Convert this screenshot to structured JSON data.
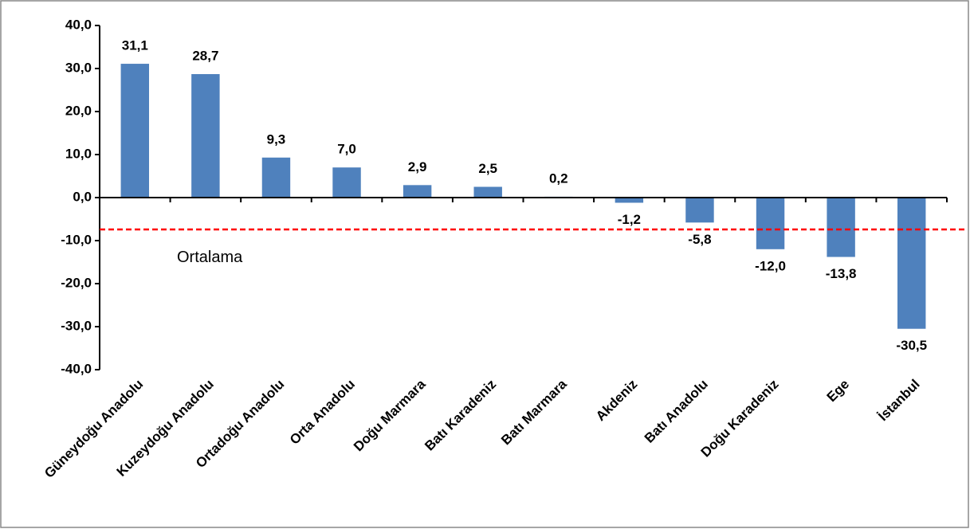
{
  "chart_data": {
    "type": "bar",
    "categories": [
      "Güneydoğu Anadolu",
      "Kuzeydoğu Anadolu",
      "Ortadoğu Anadolu",
      "Orta Anadolu",
      "Doğu Marmara",
      "Batı Karadeniz",
      "Batı Marmara",
      "Akdeniz",
      "Batı Anadolu",
      "Doğu Karadeniz",
      "Ege",
      "İstanbul"
    ],
    "values": [
      31.1,
      28.7,
      9.3,
      7.0,
      2.9,
      2.5,
      0.2,
      -1.2,
      -5.8,
      -12.0,
      -13.8,
      -30.5
    ],
    "value_labels": [
      "31,1",
      "28,7",
      "9,3",
      "7,0",
      "2,9",
      "2,5",
      "0,2",
      "-1,2",
      "-5,8",
      "-12,0",
      "-13,8",
      "-30,5"
    ],
    "color": "#4f81bd",
    "ylim": [
      -40,
      40
    ],
    "yticks": [
      {
        "value": -40,
        "label": "-40,0"
      },
      {
        "value": -30,
        "label": "-30,0"
      },
      {
        "value": -20,
        "label": "-20,0"
      },
      {
        "value": -10,
        "label": "-10,0"
      },
      {
        "value": 0,
        "label": "0,0"
      },
      {
        "value": 10,
        "label": "10,0"
      },
      {
        "value": 20,
        "label": "20,0"
      },
      {
        "value": 30,
        "label": "30,0"
      },
      {
        "value": 40,
        "label": "40,0"
      }
    ],
    "average_line": {
      "value": -7.4,
      "label": "Ortalama",
      "color": "#ff0000"
    }
  }
}
